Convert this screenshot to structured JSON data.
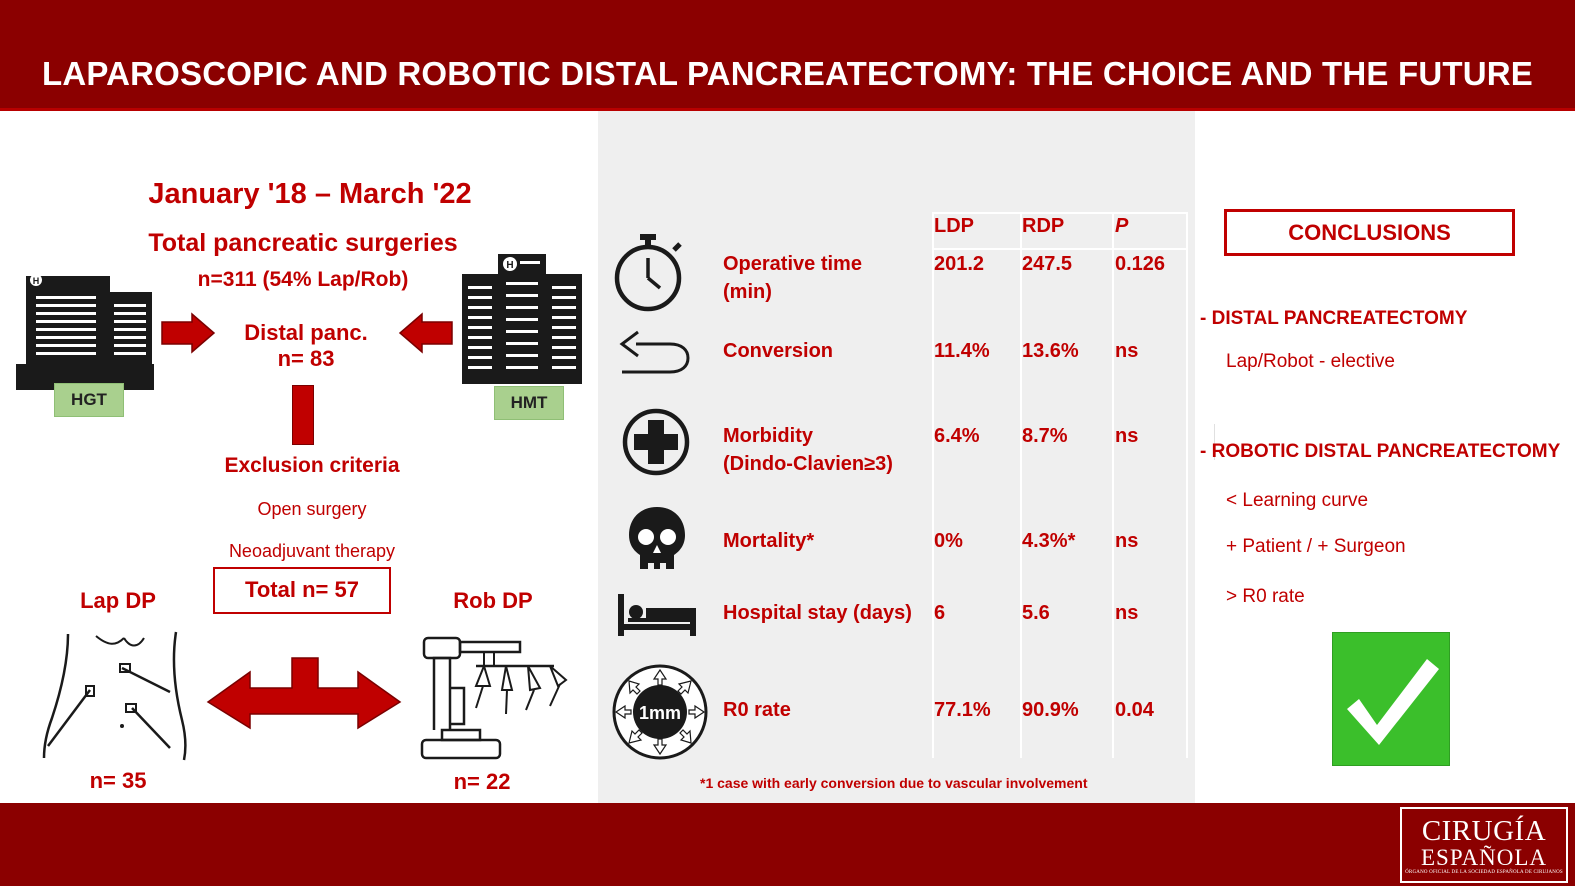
{
  "header": {
    "title": "LAPAROSCOPIC AND ROBOTIC DISTAL PANCREATECTOMY: THE CHOICE AND THE FUTURE"
  },
  "left": {
    "period": "January '18 – March '22",
    "total_label": "Total pancreatic surgeries",
    "total_n": "n=311 (54% Lap/Rob)",
    "distal_label": "Distal panc.",
    "distal_n": "n= 83",
    "hospital_left": "HGT",
    "hospital_right": "HMT",
    "exclusion_title": "Exclusion criteria",
    "exclusion_items": [
      "Open surgery",
      "Neoadjuvant therapy"
    ],
    "total_box": "Total n= 57",
    "lap_label": "Lap DP",
    "rob_label": "Rob DP",
    "lap_n": "n= 35",
    "rob_n": "n= 22"
  },
  "table": {
    "headers": [
      "LDP",
      "RDP",
      "P"
    ],
    "rows": [
      {
        "label": "Operative time",
        "label2": "(min)",
        "icon": "stopwatch-icon",
        "ldp": "201.2",
        "rdp": "247.5",
        "p": "0.126"
      },
      {
        "label": "Conversion",
        "label2": "",
        "icon": "return-arrow-icon",
        "ldp": "11.4%",
        "rdp": "13.6%",
        "p": "ns"
      },
      {
        "label": "Morbidity",
        "label2": "(Dindo-Clavien≥3)",
        "icon": "medical-cross-icon",
        "ldp": "6.4%",
        "rdp": "8.7%",
        "p": "ns"
      },
      {
        "label": "Mortality*",
        "label2": "",
        "icon": "skull-icon",
        "ldp": "0%",
        "rdp": "4.3%*",
        "p": "ns"
      },
      {
        "label": "Hospital stay (days)",
        "label2": "",
        "icon": "hospital-bed-icon",
        "ldp": "6",
        "rdp": "5.6",
        "p": "ns"
      },
      {
        "label": "R0 rate",
        "label2": "",
        "icon": "margin-1mm-icon",
        "ldp": "77.1%",
        "rdp": "90.9%",
        "p": "0.04"
      }
    ],
    "margin_icon_text": "1mm",
    "footnote": "*1 case with early conversion due to vascular involvement"
  },
  "conclusions": {
    "title": "CONCLUSIONS",
    "section1": "- DISTAL PANCREATECTOMY",
    "section1_items": [
      "Lap/Robot - elective"
    ],
    "section2": "- ROBOTIC DISTAL PANCREATECTOMY",
    "section2_items": [
      "< Learning curve",
      "+ Patient / + Surgeon",
      "> R0 rate"
    ]
  },
  "logo": {
    "line1": "CIRUGÍA",
    "line2": "ESPAÑOLA",
    "line3": "ÓRGANO OFICIAL DE LA SOCIEDAD ESPAÑOLA DE CIRUJANOS"
  },
  "colors": {
    "brand_red": "#8b0000",
    "text_red": "#c00000",
    "panel_gray": "#efefef",
    "check_green": "#3bbf2b",
    "label_green": "#a9d08e"
  }
}
